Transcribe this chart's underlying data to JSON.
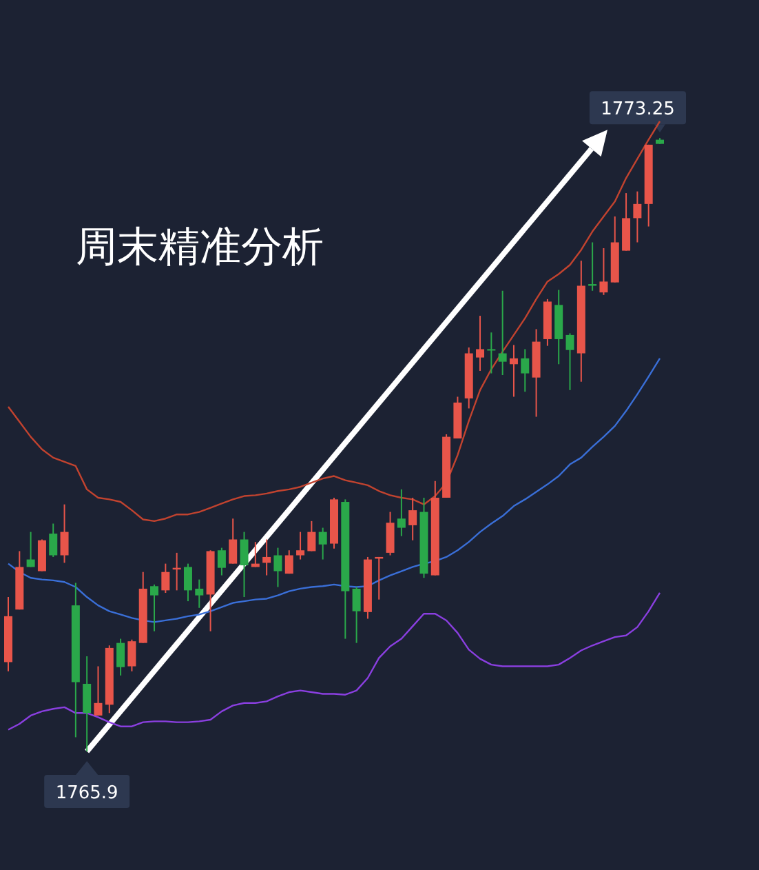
{
  "chart_data": {
    "type": "candlestick",
    "title": "周末精准分析",
    "categories": [
      null,
      null,
      null,
      null,
      null,
      null,
      null,
      null,
      null,
      null,
      null,
      null,
      null,
      null,
      null,
      null,
      null,
      null,
      null,
      null,
      null,
      null,
      null,
      null,
      null,
      null,
      null,
      null,
      null,
      null,
      null,
      null,
      null,
      null,
      null,
      null,
      null,
      null,
      null,
      null,
      null,
      null,
      null,
      null,
      null,
      null,
      null,
      null,
      null,
      null,
      null,
      null,
      null,
      null,
      null,
      null,
      null,
      null,
      null
    ],
    "ohlc": [
      [
        1766.97,
        1767.75,
        1766.86,
        1767.52
      ],
      [
        1767.6,
        1768.3,
        1767.6,
        1768.11
      ],
      [
        1768.2,
        1768.53,
        1768.11,
        1768.11
      ],
      [
        1768.06,
        1768.44,
        1768.06,
        1768.43
      ],
      [
        1768.51,
        1768.63,
        1768.23,
        1768.25
      ],
      [
        1768.25,
        1768.86,
        1768.16,
        1768.53
      ],
      [
        1767.65,
        1767.92,
        1766.07,
        1766.73
      ],
      [
        1766.71,
        1767.04,
        1765.9,
        1766.36
      ],
      [
        1766.33,
        1766.92,
        1766.33,
        1766.48
      ],
      [
        1766.46,
        1767.17,
        1766.36,
        1767.14
      ],
      [
        1767.2,
        1767.25,
        1766.81,
        1766.91
      ],
      [
        1766.92,
        1767.24,
        1766.86,
        1767.22
      ],
      [
        1767.2,
        1768.05,
        1767.2,
        1767.85
      ],
      [
        1767.88,
        1767.9,
        1767.34,
        1767.77
      ],
      [
        1767.83,
        1768.15,
        1767.8,
        1768.05
      ],
      [
        1768.08,
        1768.28,
        1767.83,
        1768.1
      ],
      [
        1768.11,
        1768.15,
        1767.7,
        1767.83
      ],
      [
        1767.85,
        1767.96,
        1767.62,
        1767.77
      ],
      [
        1767.78,
        1768.31,
        1767.34,
        1768.3
      ],
      [
        1768.31,
        1768.34,
        1768.01,
        1768.1
      ],
      [
        1768.15,
        1768.69,
        1768.15,
        1768.44
      ],
      [
        1768.44,
        1768.53,
        1767.75,
        1768.13
      ],
      [
        1768.11,
        1768.41,
        1768.11,
        1768.15
      ],
      [
        1768.16,
        1768.44,
        1768.01,
        1768.23
      ],
      [
        1768.25,
        1768.34,
        1767.87,
        1768.06
      ],
      [
        1768.03,
        1768.31,
        1768.03,
        1768.25
      ],
      [
        1768.25,
        1768.53,
        1768.2,
        1768.31
      ],
      [
        1768.3,
        1768.66,
        1768.3,
        1768.53
      ],
      [
        1768.53,
        1768.58,
        1768.2,
        1768.38
      ],
      [
        1768.39,
        1768.94,
        1768.33,
        1768.92
      ],
      [
        1768.89,
        1768.92,
        1767.25,
        1767.82
      ],
      [
        1767.85,
        1767.87,
        1767.2,
        1767.58
      ],
      [
        1767.57,
        1768.23,
        1767.49,
        1768.2
      ],
      [
        1768.21,
        1768.23,
        1767.72,
        1768.23
      ],
      [
        1768.28,
        1768.77,
        1768.25,
        1768.64
      ],
      [
        1768.69,
        1769.04,
        1768.48,
        1768.58
      ],
      [
        1768.61,
        1768.94,
        1768.43,
        1768.79
      ],
      [
        1768.77,
        1768.94,
        1767.98,
        1768.03
      ],
      [
        1768.01,
        1769.14,
        1768.01,
        1768.94
      ],
      [
        1768.94,
        1769.7,
        1768.94,
        1769.67
      ],
      [
        1769.65,
        1770.15,
        1769.65,
        1770.08
      ],
      [
        1770.13,
        1770.74,
        1770.01,
        1770.67
      ],
      [
        1770.62,
        1771.12,
        1770.46,
        1770.72
      ],
      [
        1770.72,
        1770.92,
        1770.43,
        1770.71
      ],
      [
        1770.67,
        1771.42,
        1770.41,
        1770.57
      ],
      [
        1770.54,
        1770.77,
        1770.15,
        1770.61
      ],
      [
        1770.61,
        1770.72,
        1770.21,
        1770.43
      ],
      [
        1770.38,
        1770.96,
        1769.91,
        1770.81
      ],
      [
        1770.84,
        1771.32,
        1770.76,
        1771.29
      ],
      [
        1771.25,
        1771.43,
        1770.54,
        1770.84
      ],
      [
        1770.89,
        1770.91,
        1770.23,
        1770.71
      ],
      [
        1770.67,
        1771.78,
        1770.33,
        1771.48
      ],
      [
        1771.5,
        1772.0,
        1771.42,
        1771.48
      ],
      [
        1771.4,
        1771.93,
        1771.37,
        1771.53
      ],
      [
        1771.52,
        1772.31,
        1771.52,
        1772.0
      ],
      [
        1771.9,
        1772.59,
        1771.9,
        1772.29
      ],
      [
        1772.29,
        1772.61,
        1772.0,
        1772.46
      ],
      [
        1772.46,
        1773.17,
        1772.19,
        1773.17
      ],
      [
        1773.23,
        1773.25,
        1773.18,
        1773.18
      ]
    ],
    "colors": [
      "#e8554a",
      "#e8554a",
      "#2aa84a",
      "#e8554a",
      "#2aa84a",
      "#e8554a",
      "#2aa84a",
      "#2aa84a",
      "#e8554a",
      "#e8554a",
      "#2aa84a",
      "#e8554a",
      "#e8554a",
      "#2aa84a",
      "#e8554a",
      "#e8554a",
      "#2aa84a",
      "#2aa84a",
      "#e8554a",
      "#2aa84a",
      "#e8554a",
      "#2aa84a",
      "#e8554a",
      "#e8554a",
      "#2aa84a",
      "#e8554a",
      "#e8554a",
      "#e8554a",
      "#2aa84a",
      "#e8554a",
      "#2aa84a",
      "#2aa84a",
      "#e8554a",
      "#e8554a",
      "#e8554a",
      "#2aa84a",
      "#e8554a",
      "#2aa84a",
      "#e8554a",
      "#e8554a",
      "#e8554a",
      "#e8554a",
      "#e8554a",
      "#2aa84a",
      "#2aa84a",
      "#e8554a",
      "#2aa84a",
      "#e8554a",
      "#e8554a",
      "#2aa84a",
      "#2aa84a",
      "#e8554a",
      "#2aa84a",
      "#e8554a",
      "#e8554a",
      "#e8554a",
      "#e8554a",
      "#e8554a",
      "#2aa84a"
    ],
    "series": [
      {
        "type": "line",
        "color": "#c2432f",
        "values": [
          1770.03,
          1769.85,
          1769.67,
          1769.52,
          1769.42,
          1769.37,
          1769.32,
          1769.04,
          1768.94,
          1768.92,
          1768.89,
          1768.79,
          1768.68,
          1768.66,
          1768.69,
          1768.74,
          1768.74,
          1768.77,
          1768.82,
          1768.87,
          1768.92,
          1768.96,
          1768.97,
          1768.99,
          1769.02,
          1769.04,
          1769.07,
          1769.12,
          1769.17,
          1769.2,
          1769.15,
          1769.12,
          1769.09,
          1769.02,
          1768.97,
          1768.94,
          1768.92,
          1768.86,
          1768.96,
          1769.12,
          1769.45,
          1769.86,
          1770.23,
          1770.48,
          1770.69,
          1770.89,
          1771.09,
          1771.32,
          1771.53,
          1771.62,
          1771.73,
          1771.91,
          1772.13,
          1772.31,
          1772.49,
          1772.77,
          1773.0,
          1773.23,
          1773.45
        ]
      },
      {
        "type": "line",
        "color": "#3a6fd8",
        "values": [
          1768.15,
          1768.05,
          1767.98,
          1767.96,
          1767.95,
          1767.93,
          1767.87,
          1767.75,
          1767.65,
          1767.58,
          1767.54,
          1767.5,
          1767.47,
          1767.45,
          1767.47,
          1767.49,
          1767.52,
          1767.54,
          1767.58,
          1767.63,
          1767.68,
          1767.7,
          1767.72,
          1767.73,
          1767.77,
          1767.82,
          1767.85,
          1767.87,
          1767.88,
          1767.9,
          1767.88,
          1767.87,
          1767.88,
          1767.95,
          1768.01,
          1768.06,
          1768.11,
          1768.15,
          1768.18,
          1768.23,
          1768.31,
          1768.41,
          1768.53,
          1768.63,
          1768.72,
          1768.84,
          1768.92,
          1769.01,
          1769.1,
          1769.2,
          1769.34,
          1769.42,
          1769.55,
          1769.67,
          1769.8,
          1769.98,
          1770.18,
          1770.39,
          1770.61
        ]
      },
      {
        "type": "line",
        "color": "#8a3fe0",
        "values": [
          1766.16,
          1766.23,
          1766.33,
          1766.38,
          1766.41,
          1766.43,
          1766.36,
          1766.36,
          1766.31,
          1766.25,
          1766.2,
          1766.2,
          1766.25,
          1766.26,
          1766.26,
          1766.25,
          1766.25,
          1766.26,
          1766.28,
          1766.38,
          1766.45,
          1766.48,
          1766.48,
          1766.5,
          1766.56,
          1766.61,
          1766.63,
          1766.61,
          1766.59,
          1766.59,
          1766.58,
          1766.63,
          1766.78,
          1767.02,
          1767.16,
          1767.25,
          1767.4,
          1767.55,
          1767.55,
          1767.47,
          1767.32,
          1767.12,
          1767.01,
          1766.94,
          1766.92,
          1766.92,
          1766.92,
          1766.92,
          1766.92,
          1766.94,
          1767.02,
          1767.11,
          1767.17,
          1767.22,
          1767.27,
          1767.29,
          1767.39,
          1767.58,
          1767.8
        ]
      }
    ],
    "annotations": [
      "1773.25",
      "1765.9"
    ]
  }
}
